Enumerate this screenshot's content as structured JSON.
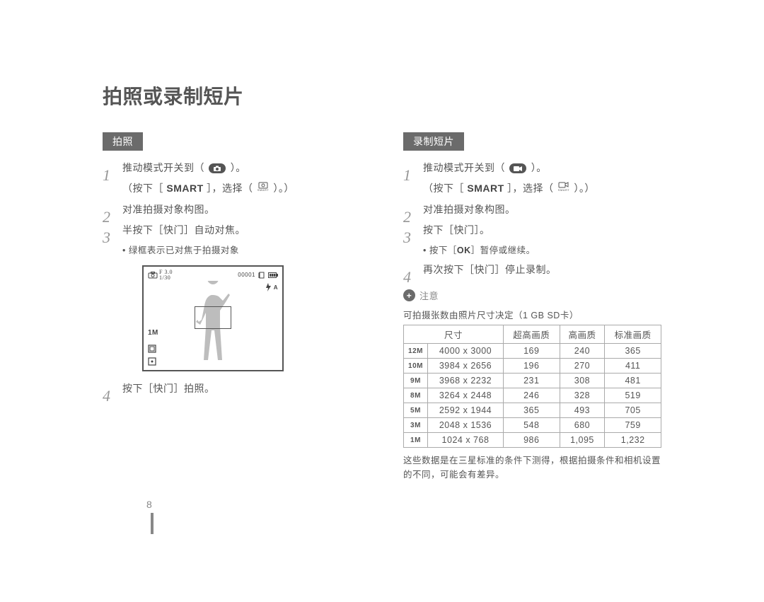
{
  "title": "拍照或录制短片",
  "page_number": "8",
  "left": {
    "tab": "拍照",
    "steps": {
      "s1a": "推动模式开关到（",
      "s1b": "）。",
      "s1c": "（按下［",
      "s1d": "SMART",
      "s1e": "］，选择（",
      "s1f": "）。）",
      "s2": "对准拍摄对象构图。",
      "s3": "半按下［快门］自动对焦。",
      "s3sub": "绿框表示已对焦于拍摄对象",
      "s4": "按下［快门］拍照。"
    },
    "display": {
      "f_label": "F 3.0",
      "speed": "1/30",
      "top_right_counter": "00001",
      "flash_label": "A",
      "bottom_tag": "1M"
    }
  },
  "right": {
    "tab": "录制短片",
    "steps": {
      "s1a": "推动模式开关到（",
      "s1b": "）。",
      "s1c": "（按下［",
      "s1d": "SMART",
      "s1e": "］，选择（",
      "s1f": "）。）",
      "s2": "对准拍摄对象构图。",
      "s3": "按下［快门］。",
      "s3sub_a": "按下［",
      "s3sub_b": "OK",
      "s3sub_c": "］暂停或继续。",
      "s4": "再次按下［快门］停止录制。"
    },
    "note_label": "注意",
    "table_caption": "可拍摄张数由照片尺寸决定（1 GB SD卡）",
    "headers": {
      "h1": "尺寸",
      "h2": "超高画质",
      "h3": "高画质",
      "h4": "标准画质"
    },
    "rows": [
      {
        "icon": "12M",
        "size": "4000 x 3000",
        "c1": "169",
        "c2": "240",
        "c3": "365"
      },
      {
        "icon": "10M",
        "size": "3984 x 2656",
        "c1": "196",
        "c2": "270",
        "c3": "411"
      },
      {
        "icon": "9M",
        "size": "3968 x 2232",
        "c1": "231",
        "c2": "308",
        "c3": "481"
      },
      {
        "icon": "8M",
        "size": "3264 x 2448",
        "c1": "246",
        "c2": "328",
        "c3": "519"
      },
      {
        "icon": "5M",
        "size": "2592 x 1944",
        "c1": "365",
        "c2": "493",
        "c3": "705"
      },
      {
        "icon": "3M",
        "size": "2048 x 1536",
        "c1": "548",
        "c2": "680",
        "c3": "759"
      },
      {
        "icon": "1M",
        "size": "1024 x 768",
        "c1": "986",
        "c2": "1,095",
        "c3": "1,232"
      }
    ],
    "footnote": "这些数据是在三星标准的条件下测得，根据拍摄条件和相机设置的不同，可能会有差异。"
  }
}
